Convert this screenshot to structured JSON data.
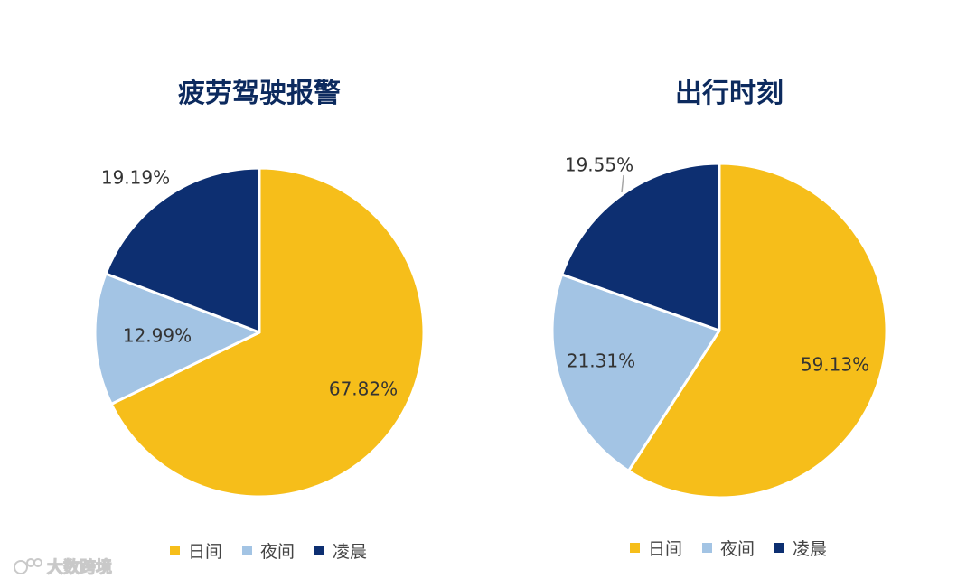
{
  "colors": {
    "day": "#f6be1a",
    "night": "#a3c4e4",
    "dawn": "#0d2f71",
    "title": "#0c2a5e",
    "label": "#333333"
  },
  "legend": {
    "items": [
      {
        "label": "日间",
        "color": "#f6be1a"
      },
      {
        "label": "夜间",
        "color": "#a3c4e4"
      },
      {
        "label": "凌晨",
        "color": "#0d2f71"
      }
    ]
  },
  "watermark": {
    "text": "大数跨境",
    "icon": "watermark-logo-icon"
  },
  "chart_data": [
    {
      "type": "pie",
      "title": "疲劳驾驶报警",
      "slices": [
        {
          "name": "日间",
          "value": 67.82,
          "label": "67.82%"
        },
        {
          "name": "夜间",
          "value": 12.99,
          "label": "12.99%"
        },
        {
          "name": "凌晨",
          "value": 19.19,
          "label": "19.19%"
        }
      ],
      "start": "12 o'clock, clockwise",
      "legend_position": "bottom"
    },
    {
      "type": "pie",
      "title": "出行时刻",
      "slices": [
        {
          "name": "日间",
          "value": 59.13,
          "label": "59.13%"
        },
        {
          "name": "夜间",
          "value": 21.31,
          "label": "21.31%"
        },
        {
          "name": "凌晨",
          "value": 19.55,
          "label": "19.55%"
        }
      ],
      "start": "12 o'clock, clockwise",
      "legend_position": "bottom"
    }
  ]
}
